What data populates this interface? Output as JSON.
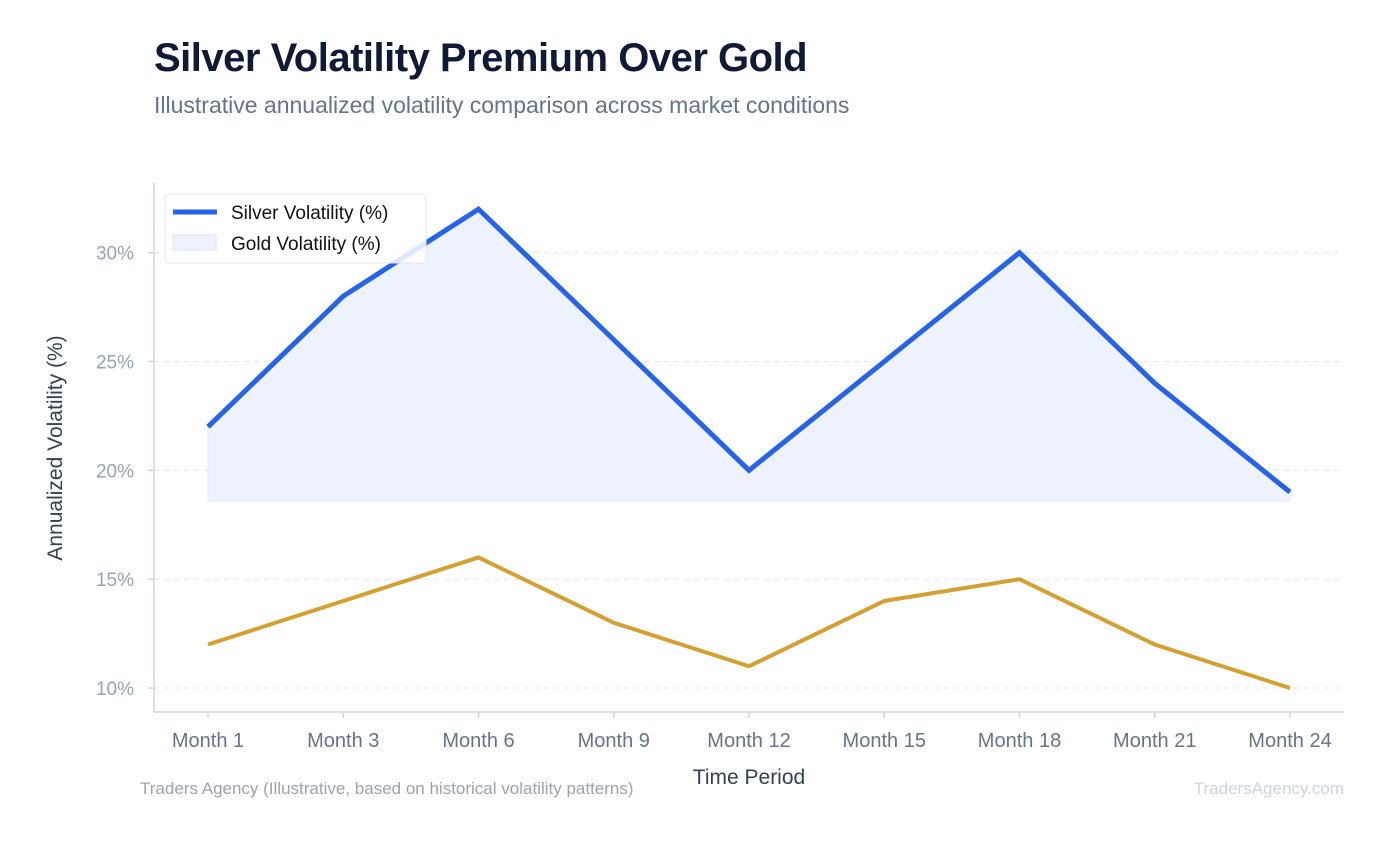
{
  "title": "Silver Volatility Premium Over Gold",
  "subtitle": "Illustrative annualized volatility comparison across market conditions",
  "footer": {
    "source": "Traders Agency (Illustrative, based on historical volatility patterns)",
    "brand": "TradersAgency.com"
  },
  "chart_data": {
    "type": "line",
    "categories": [
      "Month 1",
      "Month 3",
      "Month 6",
      "Month 9",
      "Month 12",
      "Month 15",
      "Month 18",
      "Month 21",
      "Month 24"
    ],
    "series": [
      {
        "name": "Silver Volatility (%)",
        "values": [
          22,
          28,
          32,
          26,
          20,
          25,
          30,
          24,
          19
        ],
        "color": "#2563eb"
      },
      {
        "name": "Gold Volatility (%)",
        "values": [
          12,
          14,
          16,
          13,
          11,
          14,
          15,
          12,
          10
        ],
        "color": "#d4a030"
      }
    ],
    "fill_between": {
      "lower": 18.6,
      "color": "#eef2fd"
    },
    "xlabel": "Time Period",
    "ylabel": "Annualized Volatility (%)",
    "ylim": [
      8.9,
      33.2
    ],
    "yticks": [
      10,
      15,
      20,
      25,
      30
    ],
    "ytick_labels": [
      "10%",
      "15%",
      "20%",
      "25%",
      "30%"
    ],
    "grid": "horizontal-dashed",
    "legend": {
      "position": "top-left",
      "entries": [
        "Silver Volatility (%)",
        "Gold Volatility (%)"
      ]
    }
  }
}
